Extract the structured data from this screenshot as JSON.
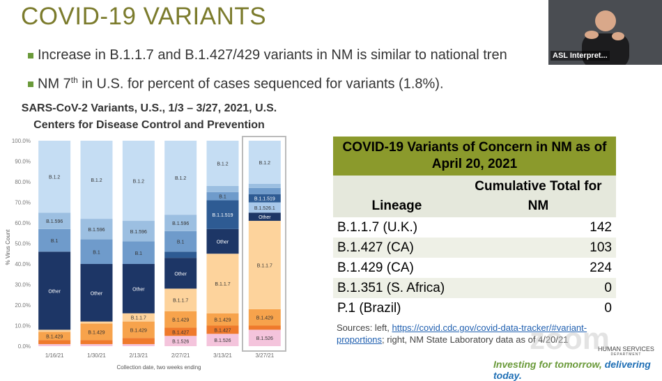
{
  "slide": {
    "title": "COVID-19 VARIANTS",
    "bullet_1": "Increase in B.1.1.7 and B.1.427/429 variants in NM is similar to national tren",
    "bullet_2": [
      "NM 7",
      "th",
      "in U.S. for percent of cases sequenced for variants (1.8%)."
    ]
  },
  "video": {
    "label": "ASL Interpret..."
  },
  "chart_data": {
    "type": "bar",
    "stacked": true,
    "title": [
      "SARS-CoV-2 Variants, U.S., 1/3 – 3/27, 2021, U.S.",
      "Centers for Disease Control and Prevention"
    ],
    "x_label": "Collection date, two weeks ending",
    "y_label": "% Virus Count",
    "categories": [
      "1/16/21",
      "1/30/21",
      "2/13/21",
      "2/27/21",
      "3/13/21",
      "3/27/21"
    ],
    "ylim": [
      0,
      100
    ],
    "yticks": [
      {
        "value": 0,
        "label": "0.0%"
      },
      {
        "value": 10,
        "label": "10.0%"
      },
      {
        "value": 20,
        "label": "20.0%"
      },
      {
        "value": 30,
        "label": "30.0%"
      },
      {
        "value": 40,
        "label": "40.0%"
      },
      {
        "value": 50,
        "label": "50.0%"
      },
      {
        "value": 60,
        "label": "60.0%"
      },
      {
        "value": 70,
        "label": "70.0%"
      },
      {
        "value": 80,
        "label": "80.0%"
      },
      {
        "value": 90,
        "label": "90.0%"
      },
      {
        "value": 100,
        "label": "100.0%"
      }
    ],
    "grid": false,
    "series": [
      {
        "name": "B.1.526",
        "color": "#f4c4dc",
        "values": [
          1,
          1,
          1,
          5,
          6,
          8
        ]
      },
      {
        "name": "B.1.427",
        "color": "#ef7a2c",
        "values": [
          2,
          2,
          3,
          4,
          4,
          2
        ]
      },
      {
        "name": "B.1.429",
        "color": "#f7a34c",
        "values": [
          4,
          8,
          8,
          8,
          6,
          8
        ]
      },
      {
        "name": "B.1.1.7",
        "color": "#fdd39c",
        "values": [
          1,
          1,
          4,
          11,
          29,
          43
        ]
      },
      {
        "name": "Other",
        "color": "#1d3666",
        "values": [
          38,
          28,
          24,
          15,
          12,
          4
        ]
      },
      {
        "name": "B.1.526.1",
        "color": "#a8c8ea",
        "values": [
          0,
          0,
          0,
          0,
          0,
          5
        ]
      },
      {
        "name": "B.1.1.519",
        "color": "#2e5b93",
        "values": [
          0,
          0,
          0,
          3,
          14,
          4
        ]
      },
      {
        "name": "B.1",
        "color": "#6f9bcb",
        "values": [
          11,
          12,
          11,
          10,
          4,
          3
        ]
      },
      {
        "name": "B.1.596",
        "color": "#9cbfe1",
        "values": [
          8,
          10,
          10,
          8,
          3,
          2
        ]
      },
      {
        "name": "B.1.2",
        "color": "#c5ddf3",
        "values": [
          35,
          38,
          39,
          36,
          22,
          21
        ]
      }
    ]
  },
  "table": {
    "title": "COVID-19 Variants of Concern in NM as of April 20, 2021",
    "headers": [
      "Lineage",
      "Cumulative Total for NM"
    ],
    "rows": [
      [
        "B.1.1.7 (U.K.)",
        142
      ],
      [
        "B.1.427 (CA)",
        103
      ],
      [
        "B.1.429 (CA)",
        224
      ],
      [
        "B.1.351 (S. Africa)",
        0
      ],
      [
        "P.1 (Brazil)",
        0
      ]
    ]
  },
  "sources": {
    "prefix": "Sources: left, ",
    "link": "https://covid.cdc.gov/covid-data-tracker/#variant-proportions",
    "suffix": "; right, NM State Laboratory data as of 4/20/21"
  },
  "footer": {
    "tagline": [
      "Investing for tomorrow,",
      "delivering today."
    ],
    "logo": [
      "HUMAN SERVICES",
      "DEPARTMENT"
    ],
    "watermark": "zoom"
  }
}
